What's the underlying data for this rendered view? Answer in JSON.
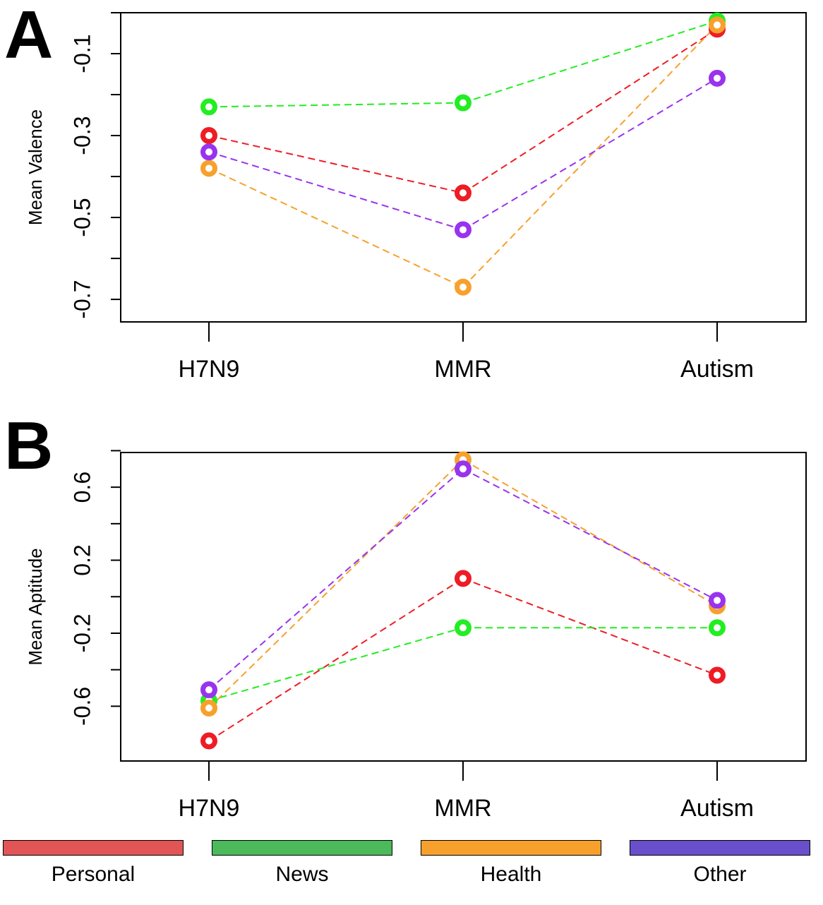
{
  "chart_data": [
    {
      "type": "line",
      "panel_label": "A",
      "title": "",
      "xlabel": "",
      "ylabel": "Mean Valence",
      "categories": [
        "H7N9",
        "MMR",
        "Autism"
      ],
      "yticks": [
        -0.1,
        -0.3,
        -0.5,
        -0.7
      ],
      "ytick_labels": [
        "-0.1",
        "-0.3",
        "-0.5",
        "-0.7"
      ],
      "ylim": [
        -0.755,
        0.0
      ],
      "grid": false,
      "line_style": "dashed",
      "series": [
        {
          "name": "Personal",
          "color": "#ee1c25",
          "values": [
            -0.3,
            -0.44,
            -0.04
          ]
        },
        {
          "name": "News",
          "color": "#22ee22",
          "values": [
            -0.23,
            -0.22,
            -0.02
          ]
        },
        {
          "name": "Health",
          "color": "#f7a12c",
          "values": [
            -0.38,
            -0.67,
            -0.03
          ]
        },
        {
          "name": "Other",
          "color": "#9933ee",
          "values": [
            -0.34,
            -0.53,
            -0.16
          ]
        }
      ]
    },
    {
      "type": "line",
      "panel_label": "B",
      "title": "",
      "xlabel": "",
      "ylabel": "Mean Aptitude",
      "categories": [
        "H7N9",
        "MMR",
        "Autism"
      ],
      "yticks": [
        0.6,
        0.2,
        -0.2,
        -0.6
      ],
      "ytick_labels": [
        "0.6",
        "0.2",
        "-0.2",
        "-0.6"
      ],
      "ylim": [
        -0.9,
        0.79
      ],
      "grid": false,
      "line_style": "dashed",
      "series": [
        {
          "name": "Personal",
          "color": "#ee1c25",
          "values": [
            -0.79,
            0.1,
            -0.43
          ]
        },
        {
          "name": "News",
          "color": "#22ee22",
          "values": [
            -0.57,
            -0.17,
            -0.17
          ]
        },
        {
          "name": "Health",
          "color": "#f7a12c",
          "values": [
            -0.61,
            0.75,
            -0.05
          ]
        },
        {
          "name": "Other",
          "color": "#9933ee",
          "values": [
            -0.51,
            0.7,
            -0.02
          ]
        }
      ]
    }
  ],
  "legend": {
    "placement": "bottom",
    "items": [
      {
        "label": "Personal",
        "color": "#e15556"
      },
      {
        "label": "News",
        "color": "#4cb95a"
      },
      {
        "label": "Health",
        "color": "#f7a12c"
      },
      {
        "label": "Other",
        "color": "#6a4fcc"
      }
    ]
  }
}
